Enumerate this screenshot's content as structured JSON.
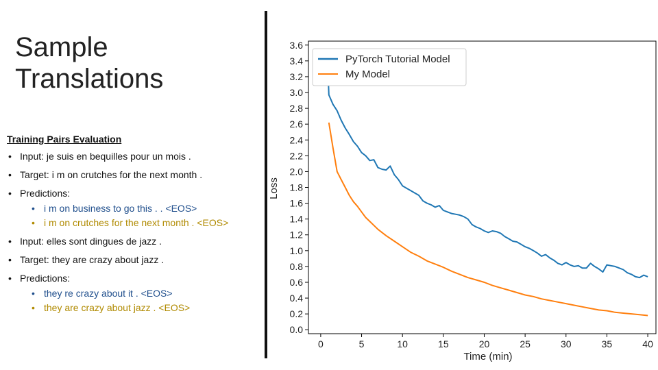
{
  "slide": {
    "title_line1": "Sample",
    "title_line2": "Translations"
  },
  "eval": {
    "heading": "Training Pairs Evaluation",
    "items": [
      {
        "text": "Input: je suis en bequilles pour un mois ."
      },
      {
        "text": "Target: i m on crutches for the next month ."
      },
      {
        "text": "Predictions:",
        "predictions": [
          "i m on business to go this . . <EOS>",
          "i m on crutches for the next month . <EOS>"
        ]
      },
      {
        "text": "Input: elles sont dingues de jazz ."
      },
      {
        "text": "Target: they are crazy about jazz ."
      },
      {
        "text": "Predictions:",
        "predictions": [
          "they re crazy about it . <EOS>",
          "they are crazy about jazz . <EOS>"
        ]
      }
    ]
  },
  "colors": {
    "series1": "#1f77b4",
    "series2": "#ff7f0e",
    "pred_first": "#1f4e8c",
    "pred_second": "#b08a00"
  },
  "chart_data": {
    "type": "line",
    "title": "",
    "xlabel": "Time (min)",
    "ylabel": "Loss",
    "xlim": [
      -1.5,
      41
    ],
    "ylim": [
      -0.05,
      3.65
    ],
    "xticks": [
      "0",
      "5",
      "10",
      "15",
      "20",
      "25",
      "30",
      "35",
      "40"
    ],
    "yticks": [
      "0.0",
      "0.2",
      "0.4",
      "0.6",
      "0.8",
      "1.0",
      "1.2",
      "1.4",
      "1.6",
      "1.8",
      "2.0",
      "2.2",
      "2.4",
      "2.6",
      "2.8",
      "3.0",
      "3.2",
      "3.4",
      "3.6"
    ],
    "legend_position": "top-left",
    "series": [
      {
        "name": "PyTorch Tutorial Model",
        "x": [
          0.8,
          1.0,
          1.5,
          2.0,
          2.5,
          3.0,
          3.5,
          4.0,
          4.5,
          5.0,
          5.5,
          6.0,
          6.5,
          7.0,
          7.5,
          8.0,
          8.5,
          9.0,
          9.5,
          10.0,
          10.5,
          11.0,
          11.5,
          12.0,
          12.5,
          13.0,
          13.5,
          14.0,
          14.5,
          15.0,
          15.5,
          16.0,
          16.5,
          17.0,
          17.5,
          18.0,
          18.5,
          19.0,
          19.5,
          20.0,
          20.5,
          21.0,
          21.5,
          22.0,
          22.5,
          23.0,
          23.5,
          24.0,
          24.5,
          25.0,
          25.5,
          26.0,
          26.5,
          27.0,
          27.5,
          28.0,
          28.5,
          29.0,
          29.5,
          30.0,
          30.5,
          31.0,
          31.5,
          32.0,
          32.5,
          33.0,
          33.5,
          34.0,
          34.5,
          35.0,
          35.5,
          36.0,
          36.5,
          37.0,
          37.5,
          38.0,
          38.5,
          39.0,
          39.5,
          40.0
        ],
        "values": [
          3.55,
          2.97,
          2.85,
          2.77,
          2.65,
          2.55,
          2.47,
          2.38,
          2.32,
          2.24,
          2.2,
          2.14,
          2.15,
          2.05,
          2.03,
          2.02,
          2.07,
          1.96,
          1.9,
          1.82,
          1.79,
          1.76,
          1.73,
          1.7,
          1.63,
          1.6,
          1.58,
          1.55,
          1.57,
          1.51,
          1.49,
          1.47,
          1.46,
          1.45,
          1.43,
          1.4,
          1.33,
          1.3,
          1.28,
          1.25,
          1.23,
          1.25,
          1.24,
          1.22,
          1.18,
          1.15,
          1.12,
          1.11,
          1.08,
          1.05,
          1.03,
          1.0,
          0.97,
          0.93,
          0.95,
          0.91,
          0.88,
          0.84,
          0.82,
          0.85,
          0.82,
          0.8,
          0.81,
          0.78,
          0.78,
          0.84,
          0.8,
          0.77,
          0.73,
          0.82,
          0.81,
          0.8,
          0.78,
          0.76,
          0.72,
          0.7,
          0.67,
          0.66,
          0.69,
          0.67
        ]
      },
      {
        "name": "My Model",
        "x": [
          1.0,
          1.5,
          2.0,
          2.5,
          3.0,
          3.5,
          4.0,
          4.5,
          5.0,
          5.5,
          6.0,
          7.0,
          8.0,
          9.0,
          10.0,
          11.0,
          12.0,
          13.0,
          14.0,
          15.0,
          16.0,
          17.0,
          18.0,
          19.0,
          20.0,
          21.0,
          22.0,
          23.0,
          24.0,
          25.0,
          26.0,
          27.0,
          28.0,
          29.0,
          30.0,
          31.0,
          32.0,
          33.0,
          34.0,
          35.0,
          36.0,
          37.0,
          38.0,
          39.0,
          40.0
        ],
        "values": [
          2.62,
          2.3,
          2.0,
          1.9,
          1.8,
          1.7,
          1.62,
          1.56,
          1.49,
          1.42,
          1.37,
          1.27,
          1.19,
          1.12,
          1.05,
          0.98,
          0.93,
          0.87,
          0.83,
          0.79,
          0.74,
          0.7,
          0.66,
          0.63,
          0.6,
          0.56,
          0.53,
          0.5,
          0.47,
          0.44,
          0.42,
          0.39,
          0.37,
          0.35,
          0.33,
          0.31,
          0.29,
          0.27,
          0.25,
          0.24,
          0.22,
          0.21,
          0.2,
          0.19,
          0.18
        ]
      }
    ]
  }
}
